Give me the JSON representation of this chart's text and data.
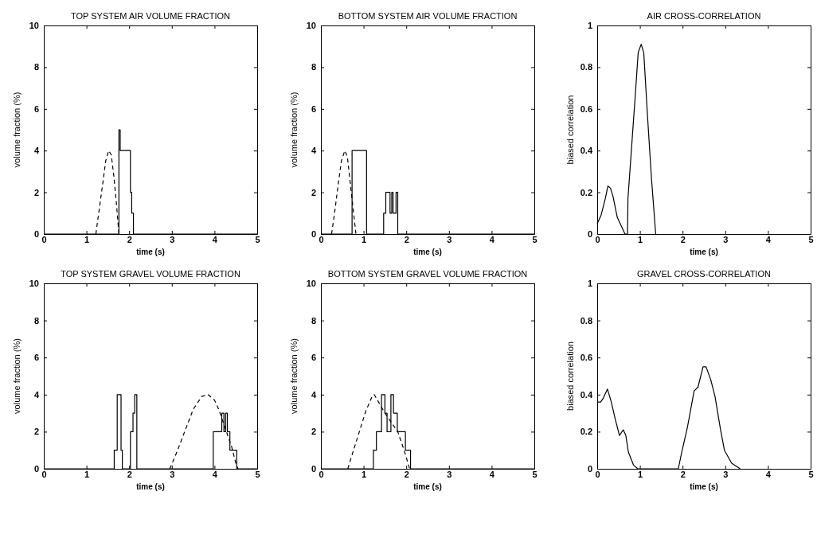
{
  "chart_data": [
    {
      "type": "line",
      "title": "TOP SYSTEM AIR VOLUME FRACTION",
      "xlabel": "time (s)",
      "ylabel": "volume fraction (%)",
      "xlim": [
        0,
        5
      ],
      "xticks": [
        0,
        1,
        2,
        3,
        4,
        5
      ],
      "ylim": [
        0,
        10
      ],
      "yticks": [
        0,
        2,
        4,
        6,
        8,
        10
      ],
      "series": [
        {
          "type": "step",
          "color": "#000000",
          "line_style": "solid",
          "x": [
            0,
            1.76,
            1.79,
            2.03,
            2.06,
            2.1,
            5
          ],
          "values": [
            0,
            5,
            4,
            2,
            1,
            0,
            0
          ]
        },
        {
          "type": "line",
          "color": "#000000",
          "line_style": "dashed",
          "x": [
            1.22,
            1.3,
            1.38,
            1.45,
            1.52,
            1.58,
            1.64,
            1.7,
            1.76
          ],
          "values": [
            0,
            1.2,
            2.4,
            3.5,
            4,
            3.8,
            2.8,
            1.5,
            0
          ]
        }
      ]
    },
    {
      "type": "line",
      "title": "BOTTOM SYSTEM AIR VOLUME FRACTION",
      "xlabel": "time (s)",
      "ylabel": "volume fraction (%)",
      "xlim": [
        0,
        5
      ],
      "xticks": [
        0,
        1,
        2,
        3,
        4,
        5
      ],
      "ylim": [
        0,
        10
      ],
      "yticks": [
        0,
        2,
        4,
        6,
        8,
        10
      ],
      "series": [
        {
          "type": "step",
          "color": "#000000",
          "line_style": "solid",
          "x": [
            0,
            0.73,
            1.07,
            1.47,
            1.52,
            1.62,
            1.66,
            1.69,
            1.76,
            1.8,
            5
          ],
          "values": [
            0,
            4,
            0,
            1,
            2,
            1,
            2,
            1,
            2,
            0,
            0
          ]
        },
        {
          "type": "line",
          "color": "#000000",
          "line_style": "dashed",
          "x": [
            0.25,
            0.32,
            0.4,
            0.48,
            0.56,
            0.62,
            0.68,
            0.75,
            0.82
          ],
          "values": [
            0,
            1,
            2.3,
            3.5,
            4,
            3.7,
            2.6,
            1.3,
            0
          ]
        }
      ]
    },
    {
      "type": "line",
      "title": "AIR CROSS-CORRELATION",
      "xlabel": "time (s)",
      "ylabel": "biased correlation",
      "xlim": [
        0,
        5
      ],
      "xticks": [
        0,
        1,
        2,
        3,
        4,
        5
      ],
      "ylim": [
        0,
        1
      ],
      "yticks": [
        0,
        0.2,
        0.4,
        0.6,
        0.8,
        1
      ],
      "series": [
        {
          "type": "line",
          "color": "#000000",
          "line_style": "solid",
          "x": [
            0,
            0.09,
            0.19,
            0.25,
            0.31,
            0.37,
            0.47,
            0.56,
            0.65,
            0.71,
            0.72,
            0.81,
            0.9,
            0.96,
            1.03,
            1.09,
            1.18,
            1.27,
            1.37
          ],
          "values": [
            0.05,
            0.09,
            0.17,
            0.23,
            0.22,
            0.18,
            0.08,
            0.04,
            0,
            0,
            0.17,
            0.43,
            0.69,
            0.87,
            0.91,
            0.87,
            0.56,
            0.27,
            0
          ]
        }
      ]
    },
    {
      "type": "line",
      "title": "TOP SYSTEM GRAVEL VOLUME FRACTION",
      "xlabel": "time (s)",
      "ylabel": "volume fraction (%)",
      "xlim": [
        0,
        5
      ],
      "xticks": [
        0,
        1,
        2,
        3,
        4,
        5
      ],
      "ylim": [
        0,
        10
      ],
      "yticks": [
        0,
        2,
        4,
        6,
        8,
        10
      ],
      "series": [
        {
          "type": "step",
          "color": "#000000",
          "line_style": "solid",
          "x": [
            0,
            1.65,
            1.72,
            1.81,
            1.84,
            2.03,
            2.09,
            2.13,
            2.18,
            3.97,
            4.17,
            4.22,
            4.26,
            4.3,
            4.36,
            4.52,
            5
          ],
          "values": [
            0,
            1,
            4,
            1,
            0,
            2,
            3,
            4,
            0,
            2,
            3,
            2,
            3,
            2,
            1,
            0,
            0
          ]
        },
        {
          "type": "line",
          "color": "#000000",
          "line_style": "dashed",
          "x": [
            2.95,
            3.1,
            3.3,
            3.5,
            3.7,
            3.85,
            4,
            4.1,
            4.25,
            4.4,
            4.5,
            4.55
          ],
          "values": [
            0,
            0.8,
            2,
            3.2,
            3.9,
            4,
            3.7,
            3.2,
            2.2,
            1.2,
            0.3,
            0
          ]
        }
      ]
    },
    {
      "type": "line",
      "title": "BOTTOM SYSTEM GRAVEL VOLUME FRACTION",
      "xlabel": "time (s)",
      "ylabel": "volume fraction (%)",
      "xlim": [
        0,
        5
      ],
      "xticks": [
        0,
        1,
        2,
        3,
        4,
        5
      ],
      "ylim": [
        0,
        10
      ],
      "yticks": [
        0,
        2,
        4,
        6,
        8,
        10
      ],
      "series": [
        {
          "type": "step",
          "color": "#000000",
          "line_style": "solid",
          "x": [
            0,
            1.23,
            1.3,
            1.42,
            1.5,
            1.55,
            1.64,
            1.7,
            1.79,
            1.98,
            2.1,
            5
          ],
          "values": [
            0,
            1,
            2,
            4,
            3,
            2,
            4,
            3,
            2,
            1,
            0,
            0
          ]
        },
        {
          "type": "line",
          "color": "#000000",
          "line_style": "dashed",
          "x": [
            0.63,
            0.75,
            0.9,
            1.05,
            1.2,
            1.25,
            1.35,
            1.5,
            1.65,
            1.8,
            1.95,
            2.08
          ],
          "values": [
            0,
            0.9,
            2,
            3.1,
            3.9,
            4,
            3.6,
            3,
            2.5,
            2,
            1,
            0
          ]
        }
      ]
    },
    {
      "type": "line",
      "title": "GRAVEL CROSS-CORRELATION",
      "xlabel": "time (s)",
      "ylabel": "biased correlation",
      "xlim": [
        0,
        5
      ],
      "xticks": [
        0,
        1,
        2,
        3,
        4,
        5
      ],
      "ylim": [
        0,
        1
      ],
      "yticks": [
        0,
        0.2,
        0.4,
        0.6,
        0.8,
        1
      ],
      "series": [
        {
          "type": "line",
          "color": "#000000",
          "line_style": "solid",
          "x": [
            0,
            0.08,
            0.14,
            0.24,
            0.33,
            0.42,
            0.52,
            0.61,
            0.67,
            0.73,
            0.85,
            0.95,
            1.9,
            1.98,
            2.11,
            2.27,
            2.36,
            2.48,
            2.55,
            2.66,
            2.76,
            2.89,
            2.98,
            3.15,
            3.35
          ],
          "values": [
            0.36,
            0.36,
            0.38,
            0.43,
            0.36,
            0.27,
            0.18,
            0.21,
            0.18,
            0.09,
            0.02,
            0,
            0,
            0.09,
            0.22,
            0.42,
            0.44,
            0.55,
            0.55,
            0.48,
            0.39,
            0.21,
            0.1,
            0.03,
            0
          ]
        }
      ]
    }
  ]
}
